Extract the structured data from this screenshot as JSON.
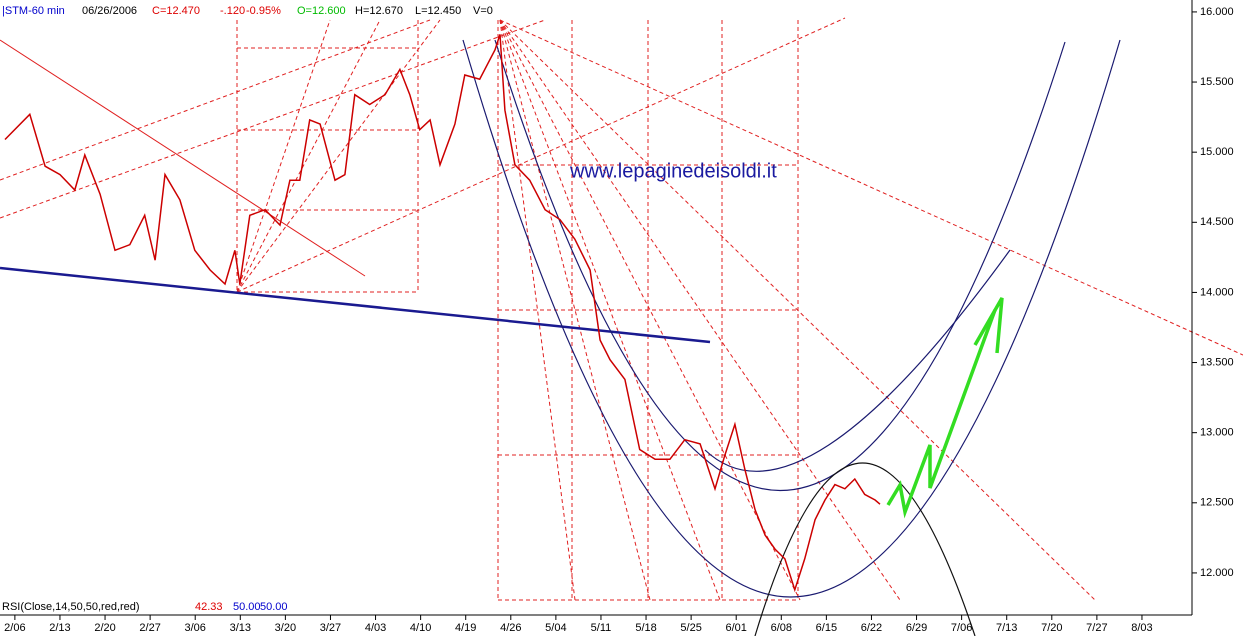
{
  "chart_data": {
    "type": "line",
    "title": "|STM-60 min",
    "header": [
      "06/26/2006",
      "C=12.470",
      "-.120",
      "-0.95%",
      "O=12.600",
      "H=12.670",
      "L=12.450",
      "V=0"
    ],
    "watermark": "www.lepaginedeisoldi.it",
    "indicator": [
      "RSI(Close,14,50,50,red,red)",
      "42.33",
      "50.00",
      "50.00"
    ],
    "color": "#cc0000",
    "x": [
      -0.22,
      0.33,
      0.67,
      1.0,
      1.33,
      1.55,
      1.89,
      2.22,
      2.55,
      2.88,
      3.11,
      3.33,
      3.66,
      3.99,
      4.33,
      4.66,
      4.88,
      4.99,
      5.21,
      5.55,
      5.88,
      6.1,
      6.32,
      6.54,
      6.77,
      7.1,
      7.32,
      7.54,
      7.87,
      8.21,
      8.54,
      8.76,
      8.98,
      9.21,
      9.43,
      9.76,
      9.98,
      10.31,
      10.65,
      10.76,
      10.87,
      11.09,
      11.42,
      11.76,
      12.09,
      12.42,
      12.76,
      12.98,
      13.2,
      13.53,
      13.86,
      14.2,
      14.53,
      14.86,
      15.2,
      15.53,
      15.75,
      15.97,
      16.19,
      16.42,
      16.64,
      16.86,
      17.08,
      17.3,
      17.52,
      17.75,
      17.97,
      18.19,
      18.41,
      18.63,
      18.85,
      19.08,
      19.19
    ],
    "values": [
      15.09,
      15.27,
      14.9,
      14.84,
      14.73,
      14.98,
      14.7,
      14.3,
      14.34,
      14.55,
      14.23,
      14.84,
      14.66,
      14.3,
      14.16,
      14.06,
      14.3,
      14.06,
      14.55,
      14.59,
      14.48,
      14.8,
      14.8,
      15.23,
      15.2,
      14.8,
      14.84,
      15.41,
      15.34,
      15.41,
      15.59,
      15.41,
      15.16,
      15.23,
      14.91,
      15.2,
      15.55,
      15.52,
      15.73,
      15.84,
      15.3,
      14.91,
      14.8,
      14.59,
      14.52,
      14.38,
      14.16,
      13.66,
      13.52,
      13.38,
      12.88,
      12.81,
      12.81,
      12.95,
      12.92,
      12.6,
      12.84,
      13.06,
      12.74,
      12.45,
      12.27,
      12.17,
      12.1,
      11.88,
      12.1,
      12.38,
      12.52,
      12.63,
      12.6,
      12.67,
      12.56,
      12.52,
      12.49
    ],
    "xlim": [
      -0.33,
      26.11
    ],
    "xticks": [
      {
        "value": 0,
        "label": "2/06"
      },
      {
        "value": 1,
        "label": "2/13"
      },
      {
        "value": 2,
        "label": "2/20"
      },
      {
        "value": 3,
        "label": "2/27"
      },
      {
        "value": 4,
        "label": "3/06"
      },
      {
        "value": 5,
        "label": "3/13"
      },
      {
        "value": 6,
        "label": "3/20"
      },
      {
        "value": 7,
        "label": "3/27"
      },
      {
        "value": 8,
        "label": "4/03"
      },
      {
        "value": 9,
        "label": "4/10"
      },
      {
        "value": 10,
        "label": "4/19"
      },
      {
        "value": 11,
        "label": "4/26"
      },
      {
        "value": 12,
        "label": "5/04"
      },
      {
        "value": 13,
        "label": "5/11"
      },
      {
        "value": 14,
        "label": "5/18"
      },
      {
        "value": 15,
        "label": "5/25"
      },
      {
        "value": 16,
        "label": "6/01"
      },
      {
        "value": 17,
        "label": "6/08"
      },
      {
        "value": 18,
        "label": "6/15"
      },
      {
        "value": 19,
        "label": "6/22"
      },
      {
        "value": 20,
        "label": "6/29"
      },
      {
        "value": 21,
        "label": "7/06"
      },
      {
        "value": 22,
        "label": "7/13"
      },
      {
        "value": 23,
        "label": "7/20"
      },
      {
        "value": 24,
        "label": "7/27"
      },
      {
        "value": 25,
        "label": "8/03"
      }
    ],
    "ylim": [
      11.7,
      16.085
    ],
    "yticks": [
      {
        "value": 12,
        "label": "12.000"
      },
      {
        "value": 12.5,
        "label": "12.500"
      },
      {
        "value": 13,
        "label": "13.000"
      },
      {
        "value": 13.5,
        "label": "13.500"
      },
      {
        "value": 14,
        "label": "14.000"
      },
      {
        "value": 14.5,
        "label": "14.500"
      },
      {
        "value": 15,
        "label": "15.000"
      },
      {
        "value": 15.5,
        "label": "15.500"
      },
      {
        "value": 16,
        "label": "16.000"
      }
    ]
  }
}
